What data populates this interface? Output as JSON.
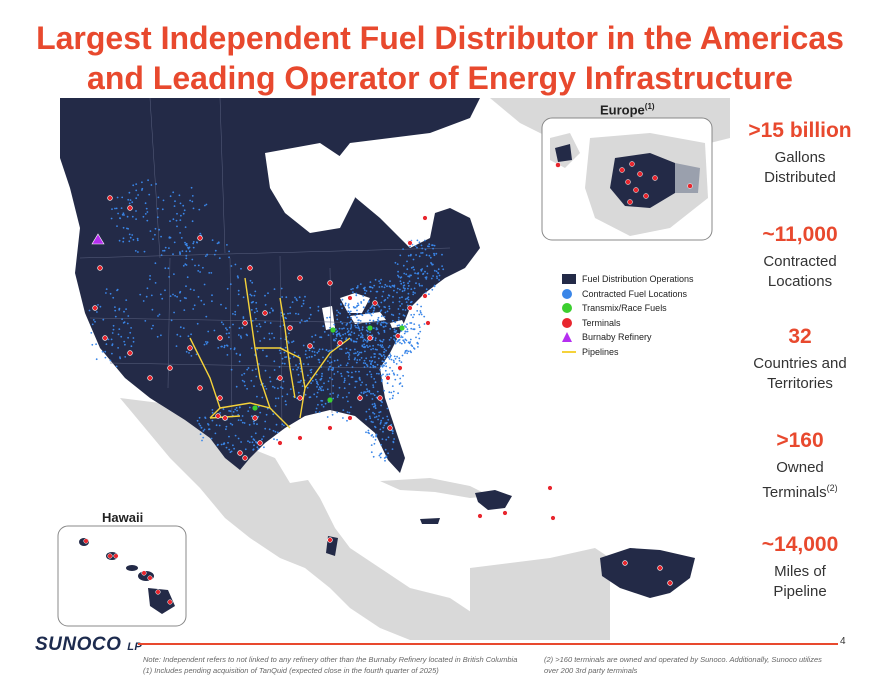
{
  "title": {
    "line1": "Largest Independent Fuel Distributor in the Americas",
    "line2": "and Leading Operator of Energy Infrastructure"
  },
  "map": {
    "inset_europe_label": "Europe",
    "inset_europe_sup": "(1)",
    "inset_hawaii_label": "Hawaii",
    "colors": {
      "ocean": "#ffffff",
      "land_other": "#d9d9d9",
      "operations": "#232a47",
      "contracted": "#3a86e8",
      "terminal": "#e8262e",
      "transmix": "#3ccf2f",
      "refinery": "#b52ef0",
      "pipeline": "#f5d23a"
    }
  },
  "legend": {
    "items": [
      {
        "label": "Fuel Distribution Operations",
        "symbol": "square",
        "color": "#232a47"
      },
      {
        "label": "Contracted Fuel Locations",
        "symbol": "circle",
        "color": "#3a86e8"
      },
      {
        "label": "Transmix/Race Fuels",
        "symbol": "circle",
        "color": "#3ccf2f"
      },
      {
        "label": "Terminals",
        "symbol": "circle",
        "color": "#e8262e"
      },
      {
        "label": "Burnaby Refinery",
        "symbol": "triangle",
        "color": "#b52ef0"
      },
      {
        "label": "Pipelines",
        "symbol": "line",
        "color": "#f5d23a"
      }
    ]
  },
  "stats": [
    {
      "value": ">15 billion",
      "label_line1": "Gallons",
      "label_line2": "Distributed",
      "sup": ""
    },
    {
      "value": "~11,000",
      "label_line1": "Contracted",
      "label_line2": "Locations",
      "sup": ""
    },
    {
      "value": "32",
      "label_line1": "Countries and",
      "label_line2": "Territories",
      "sup": ""
    },
    {
      "value": ">160",
      "label_line1": "Owned",
      "label_line2": "Terminals",
      "sup": "(2)"
    },
    {
      "value": "~14,000",
      "label_line1": "Miles of",
      "label_line2": "Pipeline",
      "sup": ""
    }
  ],
  "footer": {
    "logo_text": "SUNOCO",
    "logo_suffix": "LP",
    "page_number": "4",
    "note_left_1": "Note: Independent refers to not linked to any refinery other than the Burnaby Refinery located in British Columbia",
    "note_left_2": "(1)     Includes pending acquisition of TanQuid (expected close in the fourth quarter of 2025)",
    "note_right_1": "(2)     >160 terminals are owned and operated by Sunoco. Additionally, Sunoco utilizes",
    "note_right_2": "over 200 3rd party terminals"
  }
}
